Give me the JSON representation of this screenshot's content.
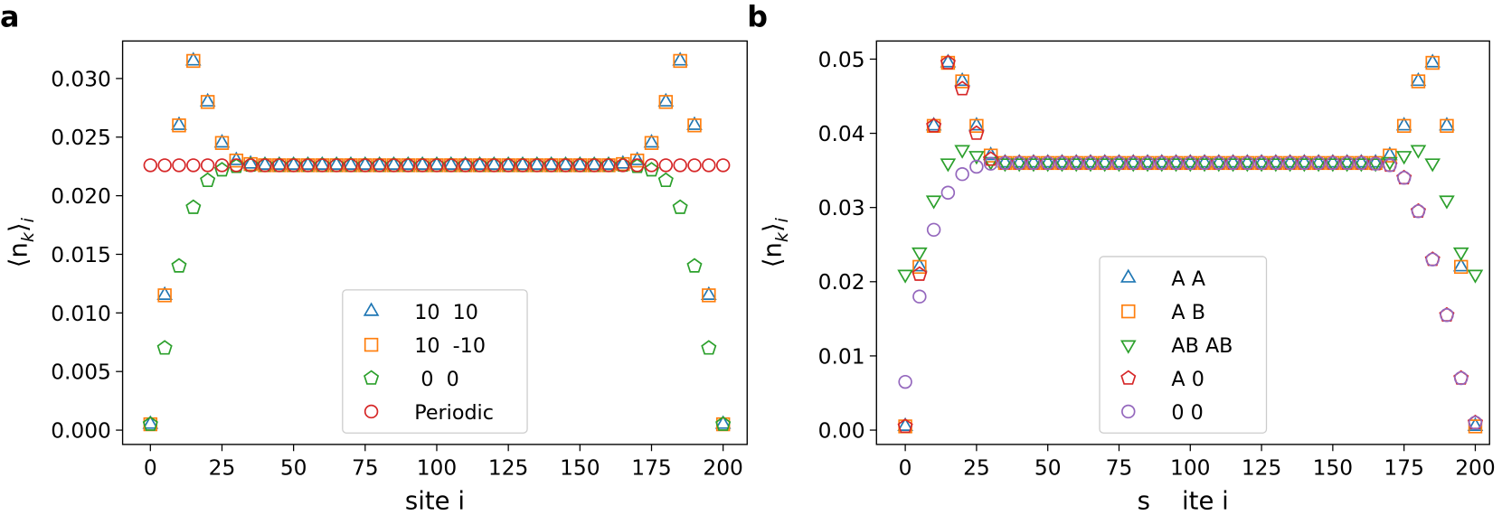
{
  "chart_data": [
    {
      "type": "scatter",
      "panel_label": "a",
      "xlabel": "site i",
      "ylabel_parts": [
        "⟨n",
        "k",
        "⟩",
        "i"
      ],
      "xlim": [
        -9.7,
        208.4
      ],
      "ylim": [
        -0.00122,
        0.0332
      ],
      "xticks": [
        0,
        25,
        50,
        75,
        100,
        125,
        150,
        175,
        200
      ],
      "yticks": [
        {
          "value": 0,
          "label": "0.000"
        },
        {
          "value": 0.005,
          "label": "0.005"
        },
        {
          "value": 0.01,
          "label": "0.010"
        },
        {
          "value": 0.015,
          "label": "0.015"
        },
        {
          "value": 0.02,
          "label": "0.020"
        },
        {
          "value": 0.025,
          "label": "0.025"
        },
        {
          "value": 0.03,
          "label": "0.030"
        }
      ],
      "legend_loc": "lower center",
      "x": [
        0,
        5,
        10,
        15,
        20,
        25,
        30,
        35,
        40,
        45,
        50,
        55,
        60,
        65,
        70,
        75,
        80,
        85,
        90,
        95,
        100,
        105,
        110,
        115,
        120,
        125,
        130,
        135,
        140,
        145,
        150,
        155,
        160,
        165,
        170,
        175,
        180,
        185,
        190,
        195,
        200
      ],
      "series": [
        {
          "name": "10  10",
          "color": "#1f77b4",
          "marker": "triangle-up",
          "values": [
            0.0005,
            0.0115,
            0.026,
            0.0315,
            0.028,
            0.0245,
            0.023,
            0.0227,
            0.0226,
            0.0226,
            0.0226,
            0.0226,
            0.0226,
            0.0226,
            0.0226,
            0.0226,
            0.0226,
            0.0226,
            0.0226,
            0.0226,
            0.0226,
            0.0226,
            0.0226,
            0.0226,
            0.0226,
            0.0226,
            0.0226,
            0.0226,
            0.0226,
            0.0226,
            0.0226,
            0.0226,
            0.0226,
            0.0227,
            0.023,
            0.0245,
            0.028,
            0.0315,
            0.026,
            0.0115,
            0.0005
          ]
        },
        {
          "name": "10  -10",
          "color": "#ff7f0e",
          "marker": "square",
          "values": [
            0.0005,
            0.0115,
            0.026,
            0.0315,
            0.028,
            0.0245,
            0.023,
            0.0227,
            0.0226,
            0.0226,
            0.0226,
            0.0226,
            0.0226,
            0.0226,
            0.0226,
            0.0226,
            0.0226,
            0.0226,
            0.0226,
            0.0226,
            0.0226,
            0.0226,
            0.0226,
            0.0226,
            0.0226,
            0.0226,
            0.0226,
            0.0226,
            0.0226,
            0.0226,
            0.0226,
            0.0226,
            0.0226,
            0.0227,
            0.023,
            0.0245,
            0.028,
            0.0315,
            0.026,
            0.0115,
            0.0005
          ]
        },
        {
          "name": " 0  0",
          "color": "#2ca02c",
          "marker": "pentagon",
          "values": [
            0.0005,
            0.007,
            0.014,
            0.019,
            0.0213,
            0.0222,
            0.0225,
            0.0226,
            0.0226,
            0.0226,
            0.0226,
            0.0226,
            0.0226,
            0.0226,
            0.0226,
            0.0226,
            0.0226,
            0.0226,
            0.0226,
            0.0226,
            0.0226,
            0.0226,
            0.0226,
            0.0226,
            0.0226,
            0.0226,
            0.0226,
            0.0226,
            0.0226,
            0.0226,
            0.0226,
            0.0226,
            0.0226,
            0.0226,
            0.0225,
            0.0222,
            0.0213,
            0.019,
            0.014,
            0.007,
            0.0005
          ]
        },
        {
          "name": "Periodic",
          "color": "#d62728",
          "marker": "circle",
          "values": [
            0.0226,
            0.0226,
            0.0226,
            0.0226,
            0.0226,
            0.0226,
            0.0226,
            0.0226,
            0.0226,
            0.0226,
            0.0226,
            0.0226,
            0.0226,
            0.0226,
            0.0226,
            0.0226,
            0.0226,
            0.0226,
            0.0226,
            0.0226,
            0.0226,
            0.0226,
            0.0226,
            0.0226,
            0.0226,
            0.0226,
            0.0226,
            0.0226,
            0.0226,
            0.0226,
            0.0226,
            0.0226,
            0.0226,
            0.0226,
            0.0226,
            0.0226,
            0.0226,
            0.0226,
            0.0226,
            0.0226,
            0.0226
          ]
        }
      ]
    },
    {
      "type": "scatter",
      "panel_label": "b",
      "xlabel": "s    ite i",
      "ylabel_parts": [
        "⟨n",
        "k",
        "⟩",
        "i"
      ],
      "xlim": [
        -10.1,
        205.0
      ],
      "ylim": [
        -0.00193,
        0.05244
      ],
      "xticks": [
        0,
        25,
        50,
        75,
        100,
        125,
        150,
        175,
        200
      ],
      "yticks": [
        {
          "value": 0,
          "label": "0.00"
        },
        {
          "value": 0.01,
          "label": "0.01"
        },
        {
          "value": 0.02,
          "label": "0.02"
        },
        {
          "value": 0.03,
          "label": "0.03"
        },
        {
          "value": 0.04,
          "label": "0.04"
        },
        {
          "value": 0.05,
          "label": "0.05"
        }
      ],
      "legend_loc": "lower center",
      "x": [
        0,
        5,
        10,
        15,
        20,
        25,
        30,
        35,
        40,
        45,
        50,
        55,
        60,
        65,
        70,
        75,
        80,
        85,
        90,
        95,
        100,
        105,
        110,
        115,
        120,
        125,
        130,
        135,
        140,
        145,
        150,
        155,
        160,
        165,
        170,
        175,
        180,
        185,
        190,
        195,
        200
      ],
      "series": [
        {
          "name": "A A",
          "color": "#1f77b4",
          "marker": "triangle-up",
          "values": [
            0.0005,
            0.022,
            0.041,
            0.0495,
            0.047,
            0.041,
            0.037,
            0.036,
            0.036,
            0.036,
            0.036,
            0.036,
            0.036,
            0.036,
            0.036,
            0.036,
            0.036,
            0.036,
            0.036,
            0.036,
            0.036,
            0.036,
            0.036,
            0.036,
            0.036,
            0.036,
            0.036,
            0.036,
            0.036,
            0.036,
            0.036,
            0.036,
            0.036,
            0.036,
            0.037,
            0.041,
            0.047,
            0.0495,
            0.041,
            0.022,
            0.0005
          ]
        },
        {
          "name": "A B",
          "color": "#ff7f0e",
          "marker": "square",
          "values": [
            0.0005,
            0.022,
            0.041,
            0.0495,
            0.047,
            0.041,
            0.037,
            0.036,
            0.036,
            0.036,
            0.036,
            0.036,
            0.036,
            0.036,
            0.036,
            0.036,
            0.036,
            0.036,
            0.036,
            0.036,
            0.036,
            0.036,
            0.036,
            0.036,
            0.036,
            0.036,
            0.036,
            0.036,
            0.036,
            0.036,
            0.036,
            0.036,
            0.036,
            0.036,
            0.037,
            0.041,
            0.047,
            0.0495,
            0.041,
            0.022,
            0.0005
          ]
        },
        {
          "name": "AB AB",
          "color": "#2ca02c",
          "marker": "triangle-down",
          "values": [
            0.021,
            0.024,
            0.031,
            0.036,
            0.0378,
            0.037,
            0.0362,
            0.036,
            0.036,
            0.036,
            0.036,
            0.036,
            0.036,
            0.036,
            0.036,
            0.036,
            0.036,
            0.036,
            0.036,
            0.036,
            0.036,
            0.036,
            0.036,
            0.036,
            0.036,
            0.036,
            0.036,
            0.036,
            0.036,
            0.036,
            0.036,
            0.036,
            0.036,
            0.036,
            0.0362,
            0.037,
            0.0378,
            0.036,
            0.031,
            0.024,
            0.021
          ]
        },
        {
          "name": "A 0",
          "color": "#d62728",
          "marker": "pentagon",
          "values": [
            0.0005,
            0.021,
            0.041,
            0.0495,
            0.046,
            0.04,
            0.0365,
            0.036,
            0.036,
            0.036,
            0.036,
            0.036,
            0.036,
            0.036,
            0.036,
            0.036,
            0.036,
            0.036,
            0.036,
            0.036,
            0.036,
            0.036,
            0.036,
            0.036,
            0.036,
            0.036,
            0.036,
            0.036,
            0.036,
            0.036,
            0.036,
            0.036,
            0.036,
            0.0359,
            0.0357,
            0.034,
            0.0295,
            0.023,
            0.0155,
            0.007,
            0.001
          ]
        },
        {
          "name": "0 0",
          "color": "#9467bd",
          "marker": "circle",
          "values": [
            0.0065,
            0.018,
            0.027,
            0.032,
            0.0345,
            0.0355,
            0.0359,
            0.036,
            0.036,
            0.036,
            0.036,
            0.036,
            0.036,
            0.036,
            0.036,
            0.036,
            0.036,
            0.036,
            0.036,
            0.036,
            0.036,
            0.036,
            0.036,
            0.036,
            0.036,
            0.036,
            0.036,
            0.036,
            0.036,
            0.036,
            0.036,
            0.036,
            0.036,
            0.0359,
            0.0357,
            0.034,
            0.0295,
            0.023,
            0.0155,
            0.007,
            0.001
          ]
        }
      ]
    }
  ]
}
